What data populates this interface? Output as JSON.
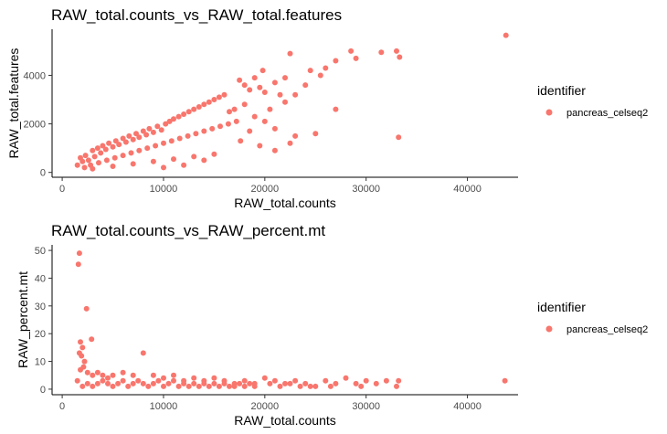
{
  "chart_data": [
    {
      "type": "scatter",
      "title": "RAW_total.counts_vs_RAW_total.features",
      "xlabel": "RAW_total.counts",
      "ylabel": "RAW_total.features",
      "xlim": [
        -1000,
        45000
      ],
      "ylim": [
        -200,
        5900
      ],
      "xticks": [
        0,
        10000,
        20000,
        30000,
        40000
      ],
      "yticks": [
        0,
        2000,
        4000
      ],
      "grid": false,
      "legend": {
        "title": "identifier",
        "entries": [
          "pancreas_celseq2"
        ],
        "position": "right"
      },
      "series": [
        {
          "name": "pancreas_celseq2",
          "color": "#F8766D",
          "points": [
            [
              1500,
              300
            ],
            [
              1800,
              600
            ],
            [
              2000,
              450
            ],
            [
              2300,
              700
            ],
            [
              2600,
              500
            ],
            [
              3000,
              900
            ],
            [
              3200,
              650
            ],
            [
              3500,
              1000
            ],
            [
              3800,
              800
            ],
            [
              4000,
              1100
            ],
            [
              4300,
              950
            ],
            [
              4600,
              1200
            ],
            [
              5000,
              1050
            ],
            [
              5300,
              1300
            ],
            [
              5600,
              1150
            ],
            [
              6000,
              1400
            ],
            [
              6300,
              1250
            ],
            [
              6600,
              1500
            ],
            [
              7000,
              1350
            ],
            [
              7300,
              1600
            ],
            [
              7600,
              1450
            ],
            [
              8000,
              1700
            ],
            [
              8300,
              1550
            ],
            [
              8600,
              1800
            ],
            [
              9000,
              1650
            ],
            [
              9400,
              1900
            ],
            [
              9800,
              1750
            ],
            [
              10200,
              2000
            ],
            [
              10600,
              2100
            ],
            [
              11000,
              2200
            ],
            [
              11500,
              2300
            ],
            [
              12000,
              2400
            ],
            [
              12500,
              2500
            ],
            [
              13000,
              2600
            ],
            [
              13500,
              2700
            ],
            [
              14000,
              2800
            ],
            [
              14500,
              2900
            ],
            [
              15000,
              3000
            ],
            [
              15500,
              3100
            ],
            [
              16000,
              3200
            ],
            [
              2200,
              200
            ],
            [
              2800,
              300
            ],
            [
              3600,
              400
            ],
            [
              4400,
              500
            ],
            [
              5200,
              600
            ],
            [
              6000,
              700
            ],
            [
              6800,
              800
            ],
            [
              7600,
              900
            ],
            [
              8400,
              1000
            ],
            [
              9200,
              1100
            ],
            [
              10000,
              1200
            ],
            [
              10800,
              1300
            ],
            [
              11600,
              1400
            ],
            [
              12400,
              1500
            ],
            [
              13200,
              1600
            ],
            [
              14000,
              1700
            ],
            [
              14800,
              1800
            ],
            [
              15600,
              1900
            ],
            [
              16400,
              2000
            ],
            [
              17200,
              2100
            ],
            [
              3000,
              150
            ],
            [
              5000,
              250
            ],
            [
              7000,
              350
            ],
            [
              9000,
              450
            ],
            [
              11000,
              550
            ],
            [
              13000,
              650
            ],
            [
              15000,
              750
            ],
            [
              14000,
              500
            ],
            [
              12000,
              300
            ],
            [
              10000,
              200
            ],
            [
              17500,
              3800
            ],
            [
              18000,
              3600
            ],
            [
              18500,
              3400
            ],
            [
              19000,
              3900
            ],
            [
              19500,
              3500
            ],
            [
              20000,
              3300
            ],
            [
              21000,
              3700
            ],
            [
              21500,
              3200
            ],
            [
              22000,
              3900
            ],
            [
              23000,
              3200
            ],
            [
              17000,
              2600
            ],
            [
              18000,
              2800
            ],
            [
              19000,
              2300
            ],
            [
              20000,
              2100
            ],
            [
              21000,
              1800
            ],
            [
              22000,
              2900
            ],
            [
              23000,
              1500
            ],
            [
              24000,
              3600
            ],
            [
              17600,
              1300
            ],
            [
              18500,
              1700
            ],
            [
              19500,
              1100
            ],
            [
              21000,
              900
            ],
            [
              22500,
              1200
            ],
            [
              25000,
              1600
            ],
            [
              27000,
              2600
            ],
            [
              26000,
              4300
            ],
            [
              27000,
              4600
            ],
            [
              28500,
              5000
            ],
            [
              29000,
              4700
            ],
            [
              31500,
              4950
            ],
            [
              33000,
              5000
            ],
            [
              33300,
              4750
            ],
            [
              33200,
              1450
            ],
            [
              43800,
              5650
            ],
            [
              24500,
              4200
            ],
            [
              25500,
              4000
            ],
            [
              16500,
              2500
            ],
            [
              20500,
              2600
            ],
            [
              19800,
              4200
            ],
            [
              22500,
              4900
            ]
          ]
        }
      ]
    },
    {
      "type": "scatter",
      "title": "RAW_total.counts_vs_RAW_percent.mt",
      "xlabel": "RAW_total.counts",
      "ylabel": "RAW_percent.mt",
      "xlim": [
        -1000,
        45000
      ],
      "ylim": [
        -2,
        52
      ],
      "xticks": [
        0,
        10000,
        20000,
        30000,
        40000
      ],
      "yticks": [
        0,
        10,
        20,
        30,
        40,
        50
      ],
      "grid": false,
      "legend": {
        "title": "identifier",
        "entries": [
          "pancreas_celseq2"
        ],
        "position": "right"
      },
      "series": [
        {
          "name": "pancreas_celseq2",
          "color": "#F8766D",
          "points": [
            [
              1700,
              49
            ],
            [
              1600,
              45
            ],
            [
              2400,
              29
            ],
            [
              2900,
              18
            ],
            [
              1800,
              17
            ],
            [
              2000,
              15
            ],
            [
              1700,
              13
            ],
            [
              1900,
              12
            ],
            [
              2200,
              10
            ],
            [
              2100,
              8
            ],
            [
              1800,
              7
            ],
            [
              2500,
              6
            ],
            [
              3000,
              5
            ],
            [
              3500,
              6
            ],
            [
              4000,
              5
            ],
            [
              4500,
              4
            ],
            [
              5000,
              5
            ],
            [
              6000,
              6
            ],
            [
              7000,
              5
            ],
            [
              8000,
              13
            ],
            [
              9000,
              5
            ],
            [
              10000,
              4
            ],
            [
              11000,
              5
            ],
            [
              12000,
              3
            ],
            [
              13000,
              4
            ],
            [
              14000,
              3
            ],
            [
              15000,
              4
            ],
            [
              16000,
              3
            ],
            [
              17000,
              2
            ],
            [
              18000,
              3
            ],
            [
              19000,
              2
            ],
            [
              20000,
              4
            ],
            [
              21000,
              3
            ],
            [
              22000,
              2
            ],
            [
              23000,
              3
            ],
            [
              24000,
              2
            ],
            [
              25000,
              1
            ],
            [
              26000,
              3
            ],
            [
              27000,
              2
            ],
            [
              28000,
              4
            ],
            [
              29000,
              2
            ],
            [
              30000,
              3
            ],
            [
              31000,
              2
            ],
            [
              32000,
              3
            ],
            [
              33000,
              1
            ],
            [
              33200,
              3
            ],
            [
              43700,
              3
            ],
            [
              1500,
              3
            ],
            [
              2000,
              1
            ],
            [
              2500,
              2
            ],
            [
              3000,
              1
            ],
            [
              3500,
              2
            ],
            [
              4000,
              3
            ],
            [
              4500,
              2
            ],
            [
              5000,
              1
            ],
            [
              5500,
              2
            ],
            [
              6000,
              3
            ],
            [
              6500,
              1
            ],
            [
              7000,
              2
            ],
            [
              7500,
              3
            ],
            [
              8000,
              2
            ],
            [
              8500,
              1
            ],
            [
              9000,
              2
            ],
            [
              9500,
              3
            ],
            [
              10000,
              1
            ],
            [
              10500,
              2
            ],
            [
              11000,
              3
            ],
            [
              11500,
              1
            ],
            [
              12000,
              2
            ],
            [
              12500,
              1
            ],
            [
              13000,
              2
            ],
            [
              13500,
              1
            ],
            [
              14000,
              2
            ],
            [
              14500,
              1
            ],
            [
              15000,
              2
            ],
            [
              15500,
              1
            ],
            [
              16000,
              2
            ],
            [
              16500,
              1
            ],
            [
              17000,
              1
            ],
            [
              17500,
              2
            ],
            [
              18000,
              1
            ],
            [
              18500,
              2
            ],
            [
              19000,
              1
            ],
            [
              20500,
              2
            ],
            [
              21500,
              1
            ],
            [
              22500,
              2
            ],
            [
              23500,
              1
            ],
            [
              24500,
              1
            ],
            [
              26500,
              1
            ],
            [
              29500,
              1
            ]
          ]
        }
      ]
    }
  ]
}
